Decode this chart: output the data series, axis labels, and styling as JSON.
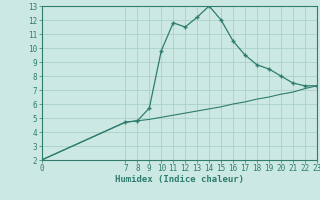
{
  "line1_x": [
    0,
    7,
    8,
    9,
    10,
    11,
    12,
    13,
    14,
    15,
    16,
    17,
    18,
    19,
    20,
    21,
    22,
    23
  ],
  "line1_y": [
    2.0,
    4.7,
    4.8,
    5.7,
    9.8,
    11.8,
    11.5,
    12.2,
    13.0,
    12.0,
    10.5,
    9.5,
    8.8,
    8.5,
    8.0,
    7.5,
    7.3,
    7.3
  ],
  "line2_x": [
    0,
    7,
    8,
    9,
    10,
    11,
    12,
    13,
    14,
    15,
    16,
    17,
    18,
    19,
    20,
    21,
    22,
    23
  ],
  "line2_y": [
    2.0,
    4.7,
    4.8,
    4.9,
    5.05,
    5.2,
    5.35,
    5.5,
    5.65,
    5.8,
    6.0,
    6.15,
    6.35,
    6.5,
    6.7,
    6.85,
    7.1,
    7.3
  ],
  "line_color": "#2e7d6e",
  "bg_color": "#cce8e3",
  "grid_color": "#aacfc9",
  "xlabel": "Humidex (Indice chaleur)",
  "xlim": [
    0,
    23
  ],
  "ylim": [
    2,
    13
  ],
  "xticks": [
    0,
    7,
    8,
    9,
    10,
    11,
    12,
    13,
    14,
    15,
    16,
    17,
    18,
    19,
    20,
    21,
    22,
    23
  ],
  "yticks": [
    2,
    3,
    4,
    5,
    6,
    7,
    8,
    9,
    10,
    11,
    12,
    13
  ],
  "marker_x": [
    7,
    8,
    9,
    10,
    11,
    12,
    13,
    14,
    15,
    16,
    17,
    18,
    19,
    20,
    21,
    22,
    23
  ],
  "marker_y": [
    4.7,
    4.8,
    5.7,
    9.8,
    11.8,
    11.5,
    12.2,
    13.0,
    12.0,
    10.5,
    9.5,
    8.8,
    8.5,
    8.0,
    7.5,
    7.3,
    7.3
  ]
}
